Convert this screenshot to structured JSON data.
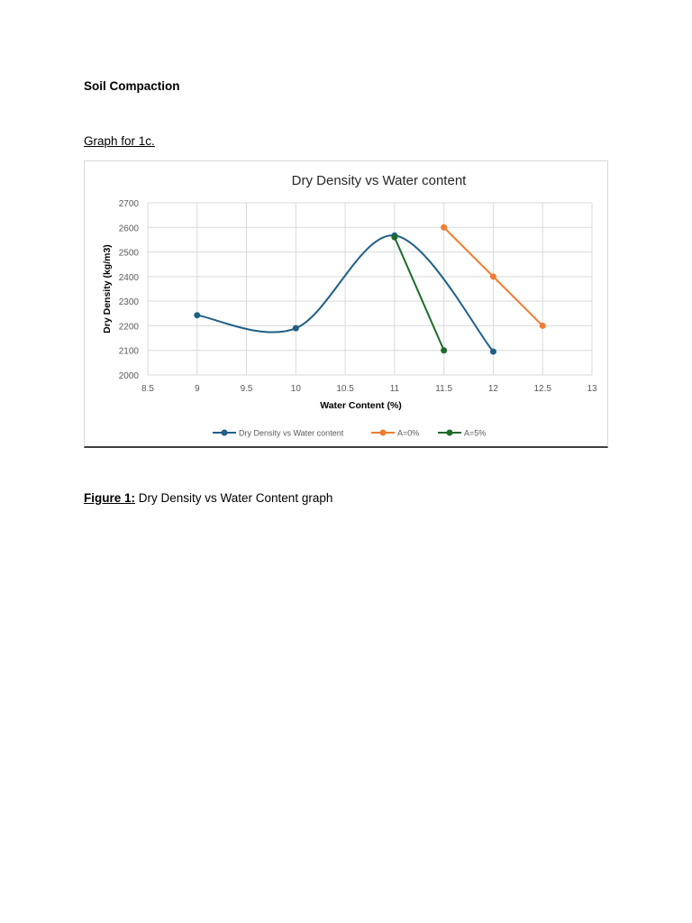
{
  "document": {
    "heading": "Soil Compaction",
    "subheading": "Graph for 1c.",
    "caption": {
      "label": "Figure 1:",
      "text": " Dry Density vs Water Content graph"
    }
  },
  "chart_data": {
    "type": "line",
    "title": "Dry Density vs Water content",
    "xlabel": "Water Content (%)",
    "ylabel": "Dry Density (kg/m3)",
    "xlim": [
      8.5,
      13
    ],
    "ylim": [
      2000,
      2700
    ],
    "x_ticks": [
      "8.5",
      "9",
      "9.5",
      "10",
      "10.5",
      "11",
      "11.5",
      "12",
      "12.5",
      "13"
    ],
    "y_ticks": [
      "2000",
      "2100",
      "2200",
      "2300",
      "2400",
      "2500",
      "2600",
      "2700"
    ],
    "grid": true,
    "legend_position": "bottom",
    "series": [
      {
        "name": "Dry Density vs Water content",
        "color": "#1f5f86",
        "smooth": true,
        "x": [
          9,
          10,
          11,
          12
        ],
        "y": [
          2243,
          2190,
          2567,
          2095
        ]
      },
      {
        "name": "A=0%",
        "color": "#ed7d31",
        "smooth": false,
        "x": [
          11.5,
          12,
          12.5
        ],
        "y": [
          2600,
          2400,
          2200
        ]
      },
      {
        "name": "A=5%",
        "color": "#1e6b2a",
        "smooth": false,
        "x": [
          11,
          11.5
        ],
        "y": [
          2560,
          2100
        ]
      }
    ]
  }
}
